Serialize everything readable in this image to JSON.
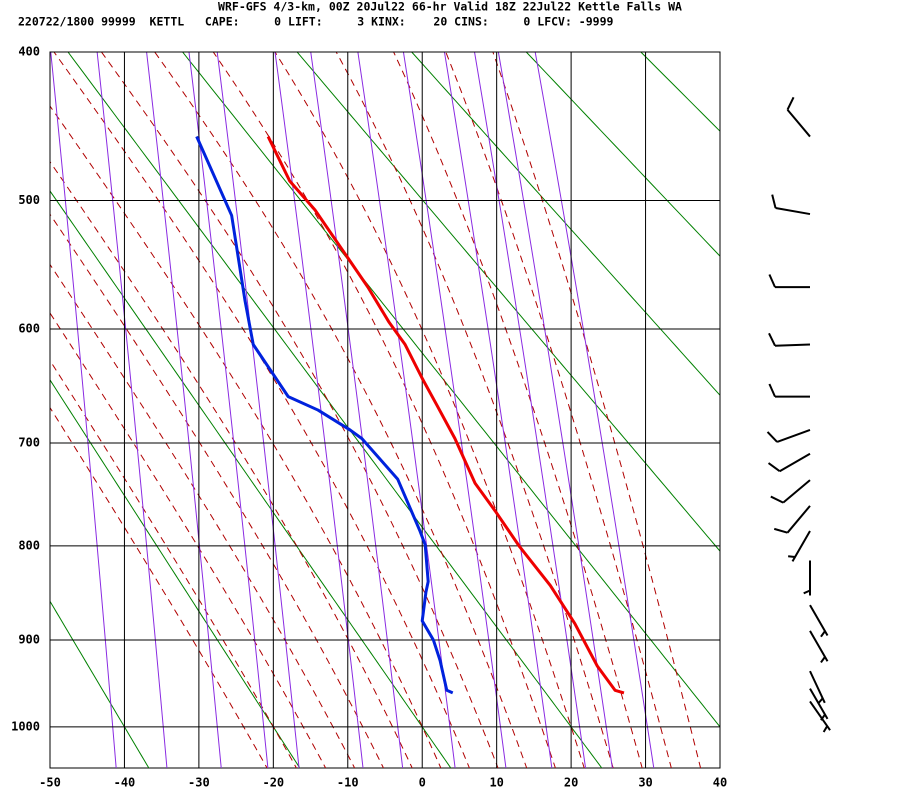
{
  "chart_data": {
    "type": "sounding",
    "title": "WRF-GFS 4/3-km, 00Z 20Jul22 66-hr Valid 18Z 22Jul22 Kettle Falls WA",
    "subtitle": "220722/1800 99999  KETTL   CAPE:     0 LIFT:     3 KINX:    20 CINS:     0 LFCV: -9999",
    "xlim": [
      -50,
      40
    ],
    "xticks": [
      -50,
      -40,
      -30,
      -20,
      -10,
      0,
      10,
      20,
      30,
      40
    ],
    "ylim": [
      400,
      1050
    ],
    "yticks": [
      400,
      500,
      600,
      700,
      800,
      900,
      1000
    ],
    "grid": true,
    "series": [
      {
        "color": "#ee0000",
        "y": [
          960,
          957,
          929,
          882,
          841,
          801,
          765,
          738,
          696,
          666,
          642,
          613,
          594,
          566,
          543,
          507,
          486,
          455
        ],
        "x": [
          27.1,
          25.9,
          23.5,
          20.5,
          17.2,
          13.1,
          9.8,
          7.1,
          4.4,
          2.0,
          0.0,
          -2.3,
          -4.5,
          -7.3,
          -10.0,
          -14.4,
          -17.8,
          -20.7
        ]
      },
      {
        "color": "#0022dd",
        "y": [
          960,
          957,
          923,
          900,
          879,
          848,
          837,
          799,
          785,
          734,
          696,
          688,
          670,
          658,
          613,
          577,
          511,
          455
        ],
        "x": [
          4.1,
          3.3,
          2.4,
          1.5,
          0.0,
          0.5,
          0.8,
          0.4,
          -0.3,
          -3.3,
          -8.1,
          -9.7,
          -14.0,
          -18.0,
          -22.7,
          -23.8,
          -25.6,
          -30.3
        ]
      }
    ],
    "wind": {
      "pressure": [
        455,
        510,
        566,
        613,
        658,
        688,
        710,
        735,
        760,
        785,
        815,
        862,
        890,
        935,
        955,
        970
      ],
      "direction": [
        320,
        280,
        270,
        268,
        270,
        250,
        240,
        230,
        220,
        210,
        180,
        150,
        150,
        155,
        150,
        145
      ],
      "speed": [
        10,
        10,
        10,
        10,
        10,
        10,
        10,
        10,
        10,
        5,
        5,
        5,
        5,
        5,
        5,
        5
      ]
    }
  }
}
